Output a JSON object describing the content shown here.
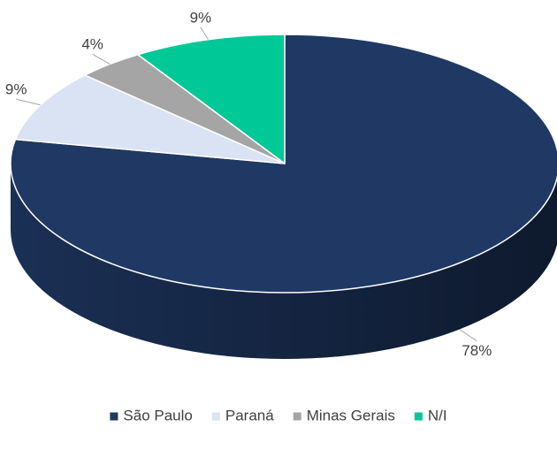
{
  "chart_data": {
    "type": "pie",
    "categories": [
      "São Paulo",
      "Paraná",
      "Minas Gerais",
      "N/I"
    ],
    "values": [
      78,
      9,
      4,
      9
    ],
    "value_labels": [
      "78%",
      "9%",
      "4%",
      "9%"
    ],
    "colors": [
      "#1f3864",
      "#dae3f3",
      "#a5a5a5",
      "#00c896"
    ],
    "legend": "bottom"
  }
}
